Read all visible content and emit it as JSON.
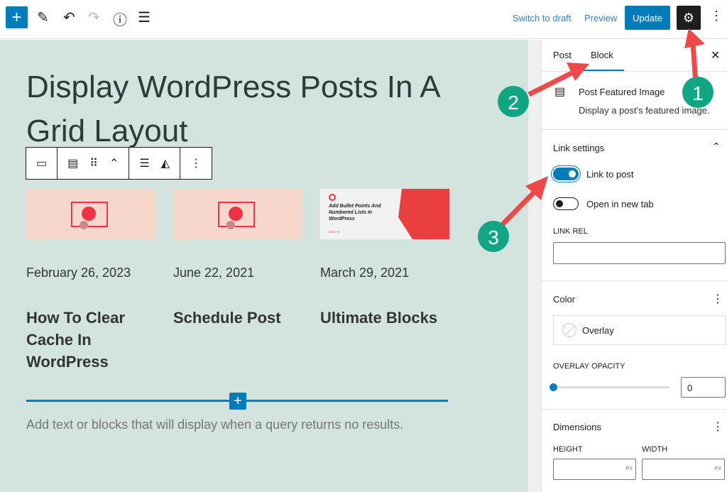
{
  "toolbar": {
    "switch_to_draft": "Switch to draft",
    "preview": "Preview",
    "update": "Update"
  },
  "post": {
    "title": "Display WordPress Posts In A Grid Layout",
    "items": [
      {
        "date": "February 26, 2023",
        "title": "How To Clear Cache In WordPress"
      },
      {
        "date": "June 22, 2021",
        "title": "Schedule Post"
      },
      {
        "date": "March 29, 2021",
        "title": "Ultimate Blocks",
        "image_text": "Add Bullet Points And Numbered Lists In WordPress",
        "image_tag": "HOW TO"
      }
    ],
    "empty_text": "Add text or blocks that will display when a query returns no results."
  },
  "sidebar": {
    "tabs": [
      "Post",
      "Block"
    ],
    "active_tab": "Block",
    "block_name": "Post Featured Image",
    "block_desc": "Display a post's featured image.",
    "link_settings": {
      "title": "Link settings",
      "link_to_post": "Link to post",
      "link_to_post_on": true,
      "new_tab": "Open in new tab",
      "new_tab_on": false,
      "link_rel_label": "LINK REL",
      "link_rel_value": ""
    },
    "color": {
      "title": "Color",
      "overlay": "Overlay",
      "opacity_label": "OVERLAY OPACITY",
      "opacity_value": "0"
    },
    "dimensions": {
      "title": "Dimensions",
      "height_label": "HEIGHT",
      "width_label": "WIDTH",
      "unit": "PX"
    }
  },
  "annotations": [
    "1",
    "2",
    "3"
  ],
  "colors": {
    "accent": "#007cba",
    "canvas": "#d3e4de",
    "arrow": "#f04848",
    "badge": "#11a683"
  }
}
